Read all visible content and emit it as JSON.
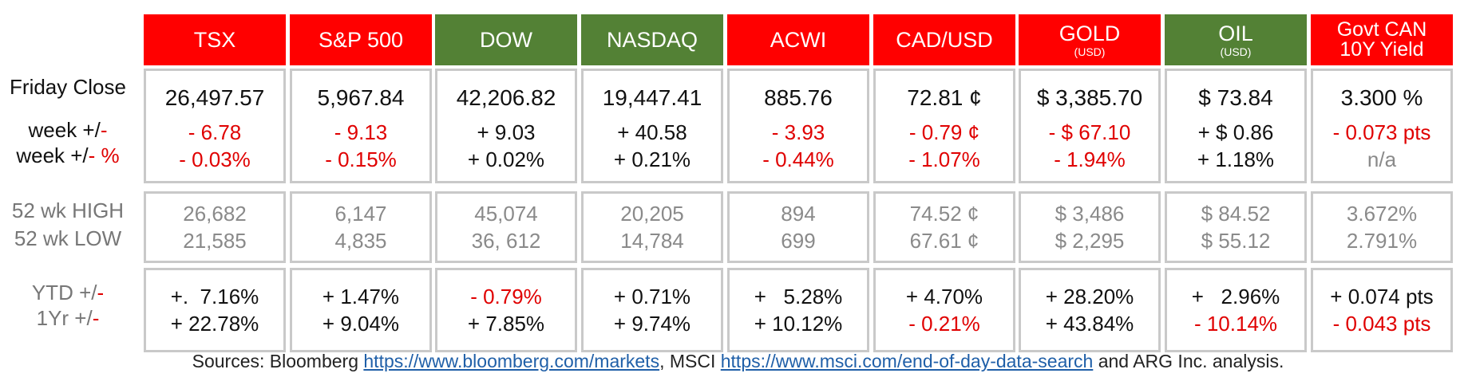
{
  "row_labels": {
    "friday_close": "Friday Close",
    "week_change_prefix": "week +/",
    "week_change_suffix": "-",
    "week_pct_prefix": "week +/",
    "week_pct_suffix": "- %",
    "high": "52 wk HIGH",
    "low": "52 wk LOW",
    "ytd_prefix": "YTD +/",
    "ytd_suffix": "-",
    "yr_prefix": "1Yr +/",
    "yr_suffix": "-"
  },
  "colors": {
    "red": "#ff0000",
    "green": "#538135",
    "neg_text": "#e00000",
    "gray_text": "#8a8a8a"
  },
  "columns": [
    {
      "label": "TSX",
      "sub": "",
      "color": "#ff0000",
      "close": "26,497.57",
      "week": {
        "text": "- 6.78",
        "tone": "red"
      },
      "week_pct": {
        "text": "- 0.03%",
        "tone": "red"
      },
      "high": "26,682",
      "low": "21,585",
      "ytd": {
        "text": "+.  7.16%",
        "tone": "blk"
      },
      "yr": {
        "text": "+ 22.78%",
        "tone": "blk"
      }
    },
    {
      "label": "S&P 500",
      "sub": "",
      "color": "#ff0000",
      "close": "5,967.84",
      "week": {
        "text": "- 9.13",
        "tone": "red"
      },
      "week_pct": {
        "text": "- 0.15%",
        "tone": "red"
      },
      "high": "6,147",
      "low": "4,835",
      "ytd": {
        "text": "+ 1.47%",
        "tone": "blk"
      },
      "yr": {
        "text": "+ 9.04%",
        "tone": "blk"
      }
    },
    {
      "label": "DOW",
      "sub": "",
      "color": "#538135",
      "close": "42,206.82",
      "week": {
        "text": "+ 9.03",
        "tone": "blk"
      },
      "week_pct": {
        "text": "+ 0.02%",
        "tone": "blk"
      },
      "high": "45,074",
      "low": "36, 612",
      "ytd": {
        "text": "- 0.79%",
        "tone": "red"
      },
      "yr": {
        "text": "+ 7.85%",
        "tone": "blk"
      }
    },
    {
      "label": "NASDAQ",
      "sub": "",
      "color": "#538135",
      "close": "19,447.41",
      "week": {
        "text": "+ 40.58",
        "tone": "blk"
      },
      "week_pct": {
        "text": "+ 0.21%",
        "tone": "blk"
      },
      "high": "20,205",
      "low": "14,784",
      "ytd": {
        "text": "+ 0.71%",
        "tone": "blk"
      },
      "yr": {
        "text": "+ 9.74%",
        "tone": "blk"
      }
    },
    {
      "label": "ACWI",
      "sub": "",
      "color": "#ff0000",
      "close": "885.76",
      "week": {
        "text": "- 3.93",
        "tone": "red"
      },
      "week_pct": {
        "text": "- 0.44%",
        "tone": "red"
      },
      "high": "894",
      "low": "699",
      "ytd": {
        "text": "+   5.28%",
        "tone": "blk"
      },
      "yr": {
        "text": "+ 10.12%",
        "tone": "blk"
      }
    },
    {
      "label": "CAD/USD",
      "sub": "",
      "color": "#ff0000",
      "close": "72.81 ¢",
      "week": {
        "text": "- 0.79 ¢",
        "tone": "red"
      },
      "week_pct": {
        "text": "- 1.07%",
        "tone": "red"
      },
      "high": "74.52 ¢",
      "low": "67.61 ¢",
      "ytd": {
        "text": "+ 4.70%",
        "tone": "blk"
      },
      "yr": {
        "text": "- 0.21%",
        "tone": "red"
      }
    },
    {
      "label": "GOLD",
      "sub": "(USD)",
      "color": "#ff0000",
      "close": "$ 3,385.70",
      "week": {
        "text": "- $ 67.10",
        "tone": "red"
      },
      "week_pct": {
        "text": "- 1.94%",
        "tone": "red"
      },
      "high": "$ 3,486",
      "low": "$ 2,295",
      "ytd": {
        "text": "+ 28.20%",
        "tone": "blk"
      },
      "yr": {
        "text": "+ 43.84%",
        "tone": "blk"
      }
    },
    {
      "label": "OIL",
      "sub": "(USD)",
      "color": "#538135",
      "close": "$ 73.84",
      "week": {
        "text": "+ $ 0.86",
        "tone": "blk"
      },
      "week_pct": {
        "text": "+ 1.18%",
        "tone": "blk"
      },
      "high": "$ 84.52",
      "low": "$ 55.12",
      "ytd": {
        "text": "+   2.96%",
        "tone": "blk"
      },
      "yr": {
        "text": "- 10.14%",
        "tone": "red"
      }
    },
    {
      "label": "Govt CAN",
      "label2": "10Y Yield",
      "sub": "",
      "color": "#ff0000",
      "close": "3.300 %",
      "week": {
        "text": "- 0.073 pts",
        "tone": "red"
      },
      "week_pct": {
        "text": "n/a",
        "tone": "gry"
      },
      "high": "3.672%",
      "low": "2.791%",
      "ytd": {
        "text": "+ 0.074 pts",
        "tone": "blk"
      },
      "yr": {
        "text": "- 0.043 pts",
        "tone": "red"
      }
    }
  ],
  "sources": {
    "prefix": "Sources: Bloomberg ",
    "link1": "https://www.bloomberg.com/markets",
    "middle": ", MSCI ",
    "link2": "https://www.msci.com/end-of-day-data-search",
    "suffix": " and ARG Inc. analysis."
  }
}
